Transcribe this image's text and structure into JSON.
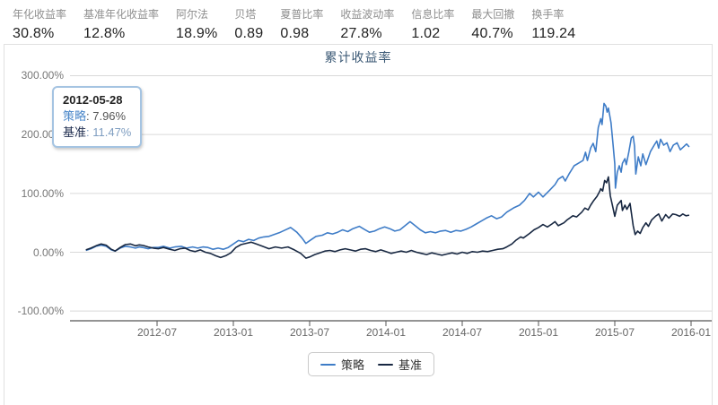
{
  "metrics": [
    {
      "label": "年化收益率",
      "value": "30.8%"
    },
    {
      "label": "基准年化收益率",
      "value": "12.8%"
    },
    {
      "label": "阿尔法",
      "value": "18.9%"
    },
    {
      "label": "贝塔",
      "value": "0.89"
    },
    {
      "label": "夏普比率",
      "value": "0.98"
    },
    {
      "label": "收益波动率",
      "value": "27.8%"
    },
    {
      "label": "信息比率",
      "value": "1.02"
    },
    {
      "label": "最大回撤",
      "value": "40.7%"
    },
    {
      "label": "换手率",
      "value": "119.24"
    }
  ],
  "chart": {
    "title": "累计收益率",
    "tooltip": {
      "date": "2012-05-28",
      "rows": [
        {
          "label": "策略",
          "value": "7.96%",
          "label_color": "#4a87c9",
          "value_color": "#555555"
        },
        {
          "label": "基准",
          "value": "11.47%",
          "label_color": "#1d2b4d",
          "value_color": "#7e9dc0"
        }
      ]
    },
    "legend": [
      {
        "label": "策略",
        "color": "#3e7cc7"
      },
      {
        "label": "基准",
        "color": "#182842"
      }
    ]
  },
  "colors": {
    "strategy_line": "#3e7cc7",
    "benchmark_line": "#182842",
    "gridline": "#d9d9d9",
    "axis_line": "#555555",
    "title_text": "#3c5a76"
  },
  "chart_data": {
    "type": "line",
    "title": "累计收益率",
    "xlabel": "",
    "ylabel": "",
    "grid": true,
    "legend_position": "bottom",
    "x_unit": "months since 2012-01",
    "ylim": [
      -160,
      320
    ],
    "y_ticks": [
      {
        "v": 300,
        "label": "300.00%"
      },
      {
        "v": 200,
        "label": "200.00%"
      },
      {
        "v": 100,
        "label": "100.00%"
      },
      {
        "v": 0,
        "label": "0.00%"
      },
      {
        "v": -100,
        "label": "-100.00%"
      }
    ],
    "x_ticks": [
      {
        "t": 6,
        "label": "2012-07"
      },
      {
        "t": 12,
        "label": "2013-01"
      },
      {
        "t": 18,
        "label": "2013-07"
      },
      {
        "t": 24,
        "label": "2014-01"
      },
      {
        "t": 30,
        "label": "2014-07"
      },
      {
        "t": 36,
        "label": "2015-01"
      },
      {
        "t": 42,
        "label": "2015-07"
      },
      {
        "t": 48,
        "label": "2016-01"
      }
    ],
    "series": [
      {
        "name": "策略",
        "color": "#3e7cc7",
        "unit": "%",
        "points": [
          [
            0.4,
            3
          ],
          [
            0.8,
            6
          ],
          [
            1.2,
            10
          ],
          [
            1.6,
            12
          ],
          [
            2.0,
            10
          ],
          [
            2.4,
            4
          ],
          [
            2.7,
            2
          ],
          [
            3.1,
            7
          ],
          [
            3.5,
            10
          ],
          [
            3.9,
            9
          ],
          [
            4.3,
            7
          ],
          [
            4.6,
            9
          ],
          [
            4.93,
            7.96
          ],
          [
            5.3,
            6
          ],
          [
            5.7,
            8
          ],
          [
            6.1,
            8
          ],
          [
            6.5,
            10
          ],
          [
            7.0,
            7
          ],
          [
            7.4,
            9
          ],
          [
            7.9,
            10
          ],
          [
            8.3,
            7
          ],
          [
            8.8,
            9
          ],
          [
            9.2,
            7
          ],
          [
            9.6,
            9
          ],
          [
            10.0,
            8
          ],
          [
            10.4,
            5
          ],
          [
            10.8,
            7
          ],
          [
            11.2,
            5
          ],
          [
            11.6,
            8
          ],
          [
            12.0,
            14
          ],
          [
            12.4,
            20
          ],
          [
            12.8,
            18
          ],
          [
            13.2,
            22
          ],
          [
            13.6,
            20
          ],
          [
            14.0,
            24
          ],
          [
            14.4,
            26
          ],
          [
            14.8,
            27
          ],
          [
            15.2,
            30
          ],
          [
            15.6,
            33
          ],
          [
            16.0,
            37
          ],
          [
            16.5,
            42
          ],
          [
            17.0,
            34
          ],
          [
            17.4,
            24
          ],
          [
            17.7,
            15
          ],
          [
            18.1,
            21
          ],
          [
            18.5,
            27
          ],
          [
            19.0,
            29
          ],
          [
            19.4,
            33
          ],
          [
            19.8,
            31
          ],
          [
            20.2,
            34
          ],
          [
            20.6,
            38
          ],
          [
            21.0,
            35
          ],
          [
            21.4,
            40
          ],
          [
            21.9,
            44
          ],
          [
            22.3,
            39
          ],
          [
            22.7,
            34
          ],
          [
            23.1,
            36
          ],
          [
            23.5,
            40
          ],
          [
            23.9,
            43
          ],
          [
            24.3,
            40
          ],
          [
            24.7,
            36
          ],
          [
            25.1,
            38
          ],
          [
            25.5,
            45
          ],
          [
            25.9,
            52
          ],
          [
            26.3,
            45
          ],
          [
            26.7,
            38
          ],
          [
            27.1,
            33
          ],
          [
            27.5,
            35
          ],
          [
            27.9,
            33
          ],
          [
            28.3,
            36
          ],
          [
            28.7,
            37
          ],
          [
            29.1,
            34
          ],
          [
            29.5,
            37
          ],
          [
            29.9,
            36
          ],
          [
            30.3,
            39
          ],
          [
            30.7,
            43
          ],
          [
            31.1,
            48
          ],
          [
            31.5,
            53
          ],
          [
            31.9,
            58
          ],
          [
            32.3,
            62
          ],
          [
            32.7,
            57
          ],
          [
            33.1,
            60
          ],
          [
            33.5,
            68
          ],
          [
            33.8,
            72
          ],
          [
            34.1,
            76
          ],
          [
            34.5,
            80
          ],
          [
            34.9,
            88
          ],
          [
            35.3,
            100
          ],
          [
            35.6,
            94
          ],
          [
            36.0,
            102
          ],
          [
            36.35,
            94
          ],
          [
            36.9,
            106
          ],
          [
            37.3,
            115
          ],
          [
            37.55,
            124
          ],
          [
            37.9,
            129
          ],
          [
            38.1,
            121
          ],
          [
            38.4,
            133
          ],
          [
            38.8,
            147
          ],
          [
            39.2,
            152
          ],
          [
            39.5,
            156
          ],
          [
            39.7,
            170
          ],
          [
            39.85,
            156
          ],
          [
            40.1,
            177
          ],
          [
            40.3,
            185
          ],
          [
            40.5,
            171
          ],
          [
            40.7,
            212
          ],
          [
            40.9,
            227
          ],
          [
            41.0,
            217
          ],
          [
            41.15,
            253
          ],
          [
            41.3,
            248
          ],
          [
            41.4,
            238
          ],
          [
            41.5,
            245
          ],
          [
            41.7,
            220
          ],
          [
            41.85,
            186
          ],
          [
            42.0,
            150
          ],
          [
            42.05,
            109
          ],
          [
            42.2,
            136
          ],
          [
            42.35,
            147
          ],
          [
            42.5,
            136
          ],
          [
            42.6,
            151
          ],
          [
            42.8,
            159
          ],
          [
            42.9,
            149
          ],
          [
            43.1,
            170
          ],
          [
            43.3,
            194
          ],
          [
            43.45,
            197
          ],
          [
            43.55,
            180
          ],
          [
            43.65,
            133
          ],
          [
            43.85,
            162
          ],
          [
            44.05,
            147
          ],
          [
            44.2,
            167
          ],
          [
            44.45,
            149
          ],
          [
            44.8,
            171
          ],
          [
            45.1,
            182
          ],
          [
            45.3,
            189
          ],
          [
            45.45,
            177
          ],
          [
            45.6,
            192
          ],
          [
            45.85,
            182
          ],
          [
            46.1,
            186
          ],
          [
            46.35,
            171
          ],
          [
            46.6,
            182
          ],
          [
            46.9,
            186
          ],
          [
            47.15,
            174
          ],
          [
            47.45,
            180
          ],
          [
            47.65,
            184
          ],
          [
            47.85,
            179
          ]
        ]
      },
      {
        "name": "基准",
        "color": "#182842",
        "unit": "%",
        "points": [
          [
            0.4,
            4
          ],
          [
            0.8,
            7
          ],
          [
            1.2,
            11
          ],
          [
            1.6,
            14
          ],
          [
            2.0,
            12
          ],
          [
            2.4,
            5
          ],
          [
            2.7,
            2
          ],
          [
            3.1,
            8
          ],
          [
            3.5,
            13
          ],
          [
            3.9,
            14
          ],
          [
            4.3,
            11
          ],
          [
            4.6,
            12.5
          ],
          [
            4.93,
            11.47
          ],
          [
            5.3,
            9
          ],
          [
            5.7,
            7
          ],
          [
            6.1,
            6
          ],
          [
            6.5,
            8
          ],
          [
            7.0,
            5
          ],
          [
            7.4,
            3
          ],
          [
            7.8,
            6
          ],
          [
            8.2,
            7
          ],
          [
            8.6,
            3
          ],
          [
            9.0,
            1
          ],
          [
            9.4,
            4
          ],
          [
            9.8,
            0
          ],
          [
            10.2,
            -2
          ],
          [
            10.6,
            -6
          ],
          [
            11.0,
            -9
          ],
          [
            11.4,
            -6
          ],
          [
            11.8,
            -1
          ],
          [
            12.2,
            8
          ],
          [
            12.6,
            13
          ],
          [
            13.0,
            15
          ],
          [
            13.4,
            17
          ],
          [
            13.8,
            14
          ],
          [
            14.3,
            10
          ],
          [
            14.8,
            6
          ],
          [
            15.3,
            9
          ],
          [
            15.8,
            7
          ],
          [
            16.3,
            9
          ],
          [
            16.8,
            4
          ],
          [
            17.3,
            -2
          ],
          [
            17.7,
            -10
          ],
          [
            18.0,
            -8
          ],
          [
            18.4,
            -4
          ],
          [
            18.8,
            -1
          ],
          [
            19.2,
            2
          ],
          [
            19.6,
            3
          ],
          [
            20.0,
            1
          ],
          [
            20.4,
            4
          ],
          [
            20.8,
            6
          ],
          [
            21.2,
            4
          ],
          [
            21.6,
            2
          ],
          [
            22.0,
            5
          ],
          [
            22.4,
            6
          ],
          [
            22.8,
            3
          ],
          [
            23.2,
            1
          ],
          [
            23.6,
            4
          ],
          [
            24.0,
            1
          ],
          [
            24.4,
            -2
          ],
          [
            24.8,
            0
          ],
          [
            25.2,
            2
          ],
          [
            25.6,
            0
          ],
          [
            26.0,
            3
          ],
          [
            26.4,
            0
          ],
          [
            26.8,
            -2
          ],
          [
            27.2,
            -4
          ],
          [
            27.6,
            -1
          ],
          [
            28.0,
            -3
          ],
          [
            28.4,
            -5
          ],
          [
            28.8,
            -3
          ],
          [
            29.2,
            -1
          ],
          [
            29.6,
            -3
          ],
          [
            30.0,
            0
          ],
          [
            30.4,
            -2
          ],
          [
            30.8,
            1
          ],
          [
            31.2,
            0
          ],
          [
            31.6,
            2
          ],
          [
            32.0,
            1
          ],
          [
            32.4,
            3
          ],
          [
            32.8,
            5
          ],
          [
            33.2,
            6
          ],
          [
            33.5,
            9
          ],
          [
            33.9,
            14
          ],
          [
            34.2,
            20
          ],
          [
            34.6,
            26
          ],
          [
            34.8,
            24
          ],
          [
            35.3,
            32
          ],
          [
            35.65,
            38
          ],
          [
            36.0,
            42
          ],
          [
            36.35,
            47
          ],
          [
            36.7,
            43
          ],
          [
            37.05,
            48
          ],
          [
            37.3,
            52
          ],
          [
            37.55,
            45
          ],
          [
            38.0,
            50
          ],
          [
            38.25,
            55
          ],
          [
            38.7,
            62
          ],
          [
            39.0,
            60
          ],
          [
            39.4,
            68
          ],
          [
            39.65,
            75
          ],
          [
            39.9,
            72
          ],
          [
            40.1,
            80
          ],
          [
            40.35,
            88
          ],
          [
            40.6,
            95
          ],
          [
            40.8,
            103
          ],
          [
            40.9,
            108
          ],
          [
            41.05,
            104
          ],
          [
            41.2,
            122
          ],
          [
            41.35,
            118
          ],
          [
            41.5,
            128
          ],
          [
            41.65,
            96
          ],
          [
            41.85,
            76
          ],
          [
            42.0,
            61
          ],
          [
            42.2,
            80
          ],
          [
            42.5,
            88
          ],
          [
            42.6,
            71
          ],
          [
            42.8,
            80
          ],
          [
            42.95,
            73
          ],
          [
            43.2,
            83
          ],
          [
            43.45,
            45
          ],
          [
            43.6,
            30
          ],
          [
            43.8,
            36
          ],
          [
            44.0,
            32
          ],
          [
            44.2,
            42
          ],
          [
            44.45,
            50
          ],
          [
            44.65,
            44
          ],
          [
            44.9,
            55
          ],
          [
            45.2,
            61
          ],
          [
            45.45,
            65
          ],
          [
            45.7,
            53
          ],
          [
            46.0,
            64
          ],
          [
            46.25,
            58
          ],
          [
            46.55,
            65
          ],
          [
            46.8,
            64
          ],
          [
            47.1,
            61
          ],
          [
            47.35,
            65
          ],
          [
            47.6,
            62
          ],
          [
            47.85,
            63
          ]
        ]
      }
    ]
  }
}
